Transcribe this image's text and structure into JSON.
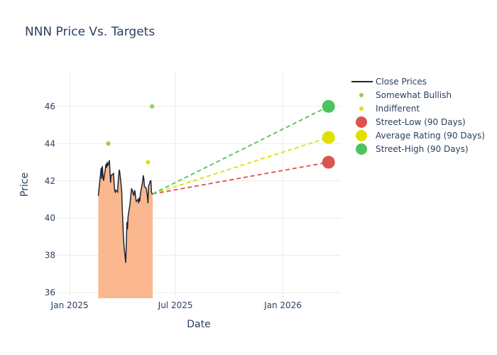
{
  "chart_data": {
    "type": "line",
    "title": "NNN Price Vs. Targets",
    "xlabel": "Date",
    "ylabel": "Price",
    "xlim": [
      "2024-12-10",
      "2026-04-10"
    ],
    "ylim": [
      35.7,
      47.9
    ],
    "x_ticks": [
      {
        "date": "2025-01-01",
        "label": "Jan 2025"
      },
      {
        "date": "2025-07-01",
        "label": "Jul 2025"
      },
      {
        "date": "2026-01-01",
        "label": "Jan 2026"
      }
    ],
    "y_ticks": [
      36,
      38,
      40,
      42,
      44,
      46
    ],
    "grid": true,
    "legend_position": "top-right",
    "series": [
      {
        "name": "Close Prices",
        "kind": "line-area",
        "color": "#1f2433",
        "fill_color": "#fbb88e",
        "points": [
          [
            "2025-02-19",
            41.2
          ],
          [
            "2025-02-21",
            41.8
          ],
          [
            "2025-02-24",
            42.7
          ],
          [
            "2025-02-25",
            42.1
          ],
          [
            "2025-02-26",
            42.8
          ],
          [
            "2025-02-27",
            42.3
          ],
          [
            "2025-02-28",
            42.0
          ],
          [
            "2025-03-03",
            42.6
          ],
          [
            "2025-03-04",
            42.9
          ],
          [
            "2025-03-05",
            42.7
          ],
          [
            "2025-03-06",
            43.0
          ],
          [
            "2025-03-07",
            42.8
          ],
          [
            "2025-03-10",
            43.1
          ],
          [
            "2025-03-11",
            42.5
          ],
          [
            "2025-03-12",
            41.9
          ],
          [
            "2025-03-13",
            42.3
          ],
          [
            "2025-03-14",
            42.3
          ],
          [
            "2025-03-17",
            42.4
          ],
          [
            "2025-03-18",
            41.9
          ],
          [
            "2025-03-19",
            41.5
          ],
          [
            "2025-03-20",
            41.4
          ],
          [
            "2025-03-21",
            41.5
          ],
          [
            "2025-03-24",
            41.4
          ],
          [
            "2025-03-25",
            41.9
          ],
          [
            "2025-03-26",
            42.3
          ],
          [
            "2025-03-27",
            42.6
          ],
          [
            "2025-03-28",
            42.4
          ],
          [
            "2025-03-31",
            41.5
          ],
          [
            "2025-04-01",
            40.5
          ],
          [
            "2025-04-02",
            39.8
          ],
          [
            "2025-04-03",
            39.0
          ],
          [
            "2025-04-04",
            38.5
          ],
          [
            "2025-04-07",
            37.6
          ],
          [
            "2025-04-08",
            38.7
          ],
          [
            "2025-04-09",
            39.8
          ],
          [
            "2025-04-10",
            39.4
          ],
          [
            "2025-04-11",
            40.1
          ],
          [
            "2025-04-14",
            40.7
          ],
          [
            "2025-04-15",
            41.0
          ],
          [
            "2025-04-16",
            41.3
          ],
          [
            "2025-04-17",
            41.6
          ],
          [
            "2025-04-21",
            41.2
          ],
          [
            "2025-04-22",
            41.5
          ],
          [
            "2025-04-23",
            41.4
          ],
          [
            "2025-04-24",
            41.1
          ],
          [
            "2025-04-25",
            40.9
          ],
          [
            "2025-04-28",
            41.0
          ],
          [
            "2025-04-29",
            40.8
          ],
          [
            "2025-04-30",
            41.1
          ],
          [
            "2025-05-01",
            40.9
          ],
          [
            "2025-05-02",
            41.3
          ],
          [
            "2025-05-05",
            41.8
          ],
          [
            "2025-05-06",
            42.0
          ],
          [
            "2025-05-07",
            42.3
          ],
          [
            "2025-05-08",
            42.1
          ],
          [
            "2025-05-09",
            41.7
          ],
          [
            "2025-05-12",
            41.6
          ],
          [
            "2025-05-13",
            41.4
          ],
          [
            "2025-05-14",
            41.2
          ],
          [
            "2025-05-15",
            40.8
          ],
          [
            "2025-05-16",
            41.7
          ],
          [
            "2025-05-19",
            42.0
          ],
          [
            "2025-05-20",
            42.0
          ],
          [
            "2025-05-21",
            41.4
          ],
          [
            "2025-05-22",
            41.3
          ],
          [
            "2025-05-23",
            41.3
          ]
        ]
      },
      {
        "name": "Somewhat Bullish",
        "kind": "markers",
        "color": "#8fd14f",
        "points": [
          [
            "2025-03-08",
            44.0
          ],
          [
            "2025-05-22",
            46.0
          ]
        ]
      },
      {
        "name": "Indifferent",
        "kind": "markers",
        "color": "#e0e000",
        "points": [
          [
            "2025-05-15",
            43.0
          ]
        ]
      },
      {
        "name": "Street-Low (90 Days)",
        "kind": "target",
        "color": "#d9534f",
        "points": [
          [
            "2025-05-23",
            41.3
          ],
          [
            "2026-03-20",
            43.0
          ]
        ]
      },
      {
        "name": "Average Rating (90 Days)",
        "kind": "target",
        "color": "#e0e000",
        "points": [
          [
            "2025-05-23",
            41.3
          ],
          [
            "2026-03-20",
            44.33
          ]
        ]
      },
      {
        "name": "Street-High (90 Days)",
        "kind": "target",
        "color": "#4cc35b",
        "points": [
          [
            "2025-05-23",
            41.3
          ],
          [
            "2026-03-20",
            46.0
          ]
        ]
      }
    ]
  }
}
